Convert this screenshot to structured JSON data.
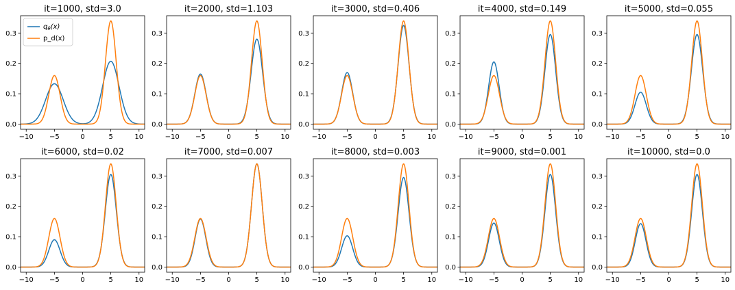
{
  "colors": {
    "q": "#1f77b4",
    "p": "#ff7f0e"
  },
  "legend": {
    "placement": "top-left",
    "q_label_base": "q",
    "q_label_sub": "θ",
    "q_label_rest": "(x)",
    "p_label": "p_d(x)"
  },
  "chart_data": [
    {
      "type": "line",
      "title": "it=1000, std=3.0",
      "xlim": [
        -11,
        11
      ],
      "ylim": [
        -0.017,
        0.357
      ],
      "xticks": [
        "−10",
        "−5",
        "0",
        "5",
        "10"
      ],
      "yticks": [
        "0.0",
        "0.1",
        "0.2",
        "0.3"
      ],
      "grid": false,
      "series": [
        {
          "name": "qθ(x)",
          "peaks": [
            {
              "mu": -5,
              "height": 0.133,
              "sigma": 1.55
            },
            {
              "mu": 5,
              "height": 0.207,
              "sigma": 1.45
            }
          ]
        },
        {
          "name": "p_d(x)",
          "peaks": [
            {
              "mu": -5,
              "height": 0.16,
              "sigma": 1.0
            },
            {
              "mu": 5,
              "height": 0.34,
              "sigma": 0.95
            }
          ]
        }
      ]
    },
    {
      "type": "line",
      "title": "it=2000, std=1.103",
      "xlim": [
        -11,
        11
      ],
      "ylim": [
        -0.017,
        0.357
      ],
      "xticks": [
        "−10",
        "−5",
        "0",
        "5",
        "10"
      ],
      "yticks": [
        "0.0",
        "0.1",
        "0.2",
        "0.3"
      ],
      "grid": false,
      "series": [
        {
          "name": "qθ(x)",
          "peaks": [
            {
              "mu": -5,
              "height": 0.165,
              "sigma": 1.0
            },
            {
              "mu": 5,
              "height": 0.28,
              "sigma": 1.02
            }
          ]
        },
        {
          "name": "p_d(x)",
          "peaks": [
            {
              "mu": -5,
              "height": 0.16,
              "sigma": 1.0
            },
            {
              "mu": 5,
              "height": 0.34,
              "sigma": 0.95
            }
          ]
        }
      ]
    },
    {
      "type": "line",
      "title": "it=3000, std=0.406",
      "xlim": [
        -11,
        11
      ],
      "ylim": [
        -0.017,
        0.357
      ],
      "xticks": [
        "−10",
        "−5",
        "0",
        "5",
        "10"
      ],
      "yticks": [
        "0.0",
        "0.1",
        "0.2",
        "0.3"
      ],
      "grid": false,
      "series": [
        {
          "name": "qθ(x)",
          "peaks": [
            {
              "mu": -5,
              "height": 0.17,
              "sigma": 0.98
            },
            {
              "mu": 5,
              "height": 0.325,
              "sigma": 0.97
            }
          ]
        },
        {
          "name": "p_d(x)",
          "peaks": [
            {
              "mu": -5,
              "height": 0.16,
              "sigma": 1.0
            },
            {
              "mu": 5,
              "height": 0.34,
              "sigma": 0.95
            }
          ]
        }
      ]
    },
    {
      "type": "line",
      "title": "it=4000, std=0.149",
      "xlim": [
        -11,
        11
      ],
      "ylim": [
        -0.017,
        0.357
      ],
      "xticks": [
        "−10",
        "−5",
        "0",
        "5",
        "10"
      ],
      "yticks": [
        "0.0",
        "0.1",
        "0.2",
        "0.3"
      ],
      "grid": false,
      "series": [
        {
          "name": "qθ(x)",
          "peaks": [
            {
              "mu": -5,
              "height": 0.205,
              "sigma": 0.93
            },
            {
              "mu": 5,
              "height": 0.295,
              "sigma": 0.95
            }
          ]
        },
        {
          "name": "p_d(x)",
          "peaks": [
            {
              "mu": -5,
              "height": 0.16,
              "sigma": 1.0
            },
            {
              "mu": 5,
              "height": 0.34,
              "sigma": 0.95
            }
          ]
        }
      ]
    },
    {
      "type": "line",
      "title": "it=5000, std=0.055",
      "xlim": [
        -11,
        11
      ],
      "ylim": [
        -0.017,
        0.357
      ],
      "xticks": [
        "−10",
        "−5",
        "0",
        "5",
        "10"
      ],
      "yticks": [
        "0.0",
        "0.1",
        "0.2",
        "0.3"
      ],
      "grid": false,
      "series": [
        {
          "name": "qθ(x)",
          "peaks": [
            {
              "mu": -5,
              "height": 0.105,
              "sigma": 1.0
            },
            {
              "mu": 5,
              "height": 0.295,
              "sigma": 1.0
            }
          ]
        },
        {
          "name": "p_d(x)",
          "peaks": [
            {
              "mu": -5,
              "height": 0.16,
              "sigma": 1.0
            },
            {
              "mu": 5,
              "height": 0.34,
              "sigma": 0.95
            }
          ]
        }
      ]
    },
    {
      "type": "line",
      "title": "it=6000, std=0.02",
      "xlim": [
        -11,
        11
      ],
      "ylim": [
        -0.017,
        0.357
      ],
      "xticks": [
        "−10",
        "−5",
        "0",
        "5",
        "10"
      ],
      "yticks": [
        "0.0",
        "0.1",
        "0.2",
        "0.3"
      ],
      "grid": false,
      "series": [
        {
          "name": "qθ(x)",
          "peaks": [
            {
              "mu": -5,
              "height": 0.09,
              "sigma": 1.0
            },
            {
              "mu": 5,
              "height": 0.305,
              "sigma": 0.98
            }
          ]
        },
        {
          "name": "p_d(x)",
          "peaks": [
            {
              "mu": -5,
              "height": 0.16,
              "sigma": 1.0
            },
            {
              "mu": 5,
              "height": 0.34,
              "sigma": 0.95
            }
          ]
        }
      ]
    },
    {
      "type": "line",
      "title": "it=7000, std=0.007",
      "xlim": [
        -11,
        11
      ],
      "ylim": [
        -0.017,
        0.357
      ],
      "xticks": [
        "−10",
        "−5",
        "0",
        "5",
        "10"
      ],
      "yticks": [
        "0.0",
        "0.1",
        "0.2",
        "0.3"
      ],
      "grid": false,
      "series": [
        {
          "name": "qθ(x)",
          "peaks": [
            {
              "mu": -5,
              "height": 0.158,
              "sigma": 0.95
            },
            {
              "mu": 5,
              "height": 0.34,
              "sigma": 0.95
            }
          ]
        },
        {
          "name": "p_d(x)",
          "peaks": [
            {
              "mu": -5,
              "height": 0.16,
              "sigma": 1.0
            },
            {
              "mu": 5,
              "height": 0.34,
              "sigma": 0.95
            }
          ]
        }
      ]
    },
    {
      "type": "line",
      "title": "it=8000, std=0.003",
      "xlim": [
        -11,
        11
      ],
      "ylim": [
        -0.017,
        0.357
      ],
      "xticks": [
        "−10",
        "−5",
        "0",
        "5",
        "10"
      ],
      "yticks": [
        "0.0",
        "0.1",
        "0.2",
        "0.3"
      ],
      "grid": false,
      "series": [
        {
          "name": "qθ(x)",
          "peaks": [
            {
              "mu": -5,
              "height": 0.103,
              "sigma": 0.98
            },
            {
              "mu": 5,
              "height": 0.295,
              "sigma": 0.97
            }
          ]
        },
        {
          "name": "p_d(x)",
          "peaks": [
            {
              "mu": -5,
              "height": 0.16,
              "sigma": 1.0
            },
            {
              "mu": 5,
              "height": 0.34,
              "sigma": 0.95
            }
          ]
        }
      ]
    },
    {
      "type": "line",
      "title": "it=9000, std=0.001",
      "xlim": [
        -11,
        11
      ],
      "ylim": [
        -0.017,
        0.357
      ],
      "xticks": [
        "−10",
        "−5",
        "0",
        "5",
        "10"
      ],
      "yticks": [
        "0.0",
        "0.1",
        "0.2",
        "0.3"
      ],
      "grid": false,
      "series": [
        {
          "name": "qθ(x)",
          "peaks": [
            {
              "mu": -5,
              "height": 0.145,
              "sigma": 0.95
            },
            {
              "mu": 5,
              "height": 0.305,
              "sigma": 0.95
            }
          ]
        },
        {
          "name": "p_d(x)",
          "peaks": [
            {
              "mu": -5,
              "height": 0.16,
              "sigma": 1.0
            },
            {
              "mu": 5,
              "height": 0.34,
              "sigma": 0.95
            }
          ]
        }
      ]
    },
    {
      "type": "line",
      "title": "it=10000, std=0.0",
      "xlim": [
        -11,
        11
      ],
      "ylim": [
        -0.017,
        0.357
      ],
      "xticks": [
        "−10",
        "−5",
        "0",
        "5",
        "10"
      ],
      "yticks": [
        "0.0",
        "0.1",
        "0.2",
        "0.3"
      ],
      "grid": false,
      "series": [
        {
          "name": "qθ(x)",
          "peaks": [
            {
              "mu": -5,
              "height": 0.143,
              "sigma": 0.95
            },
            {
              "mu": 5,
              "height": 0.305,
              "sigma": 0.95
            }
          ]
        },
        {
          "name": "p_d(x)",
          "peaks": [
            {
              "mu": -5,
              "height": 0.16,
              "sigma": 1.0
            },
            {
              "mu": 5,
              "height": 0.34,
              "sigma": 0.95
            }
          ]
        }
      ]
    }
  ]
}
